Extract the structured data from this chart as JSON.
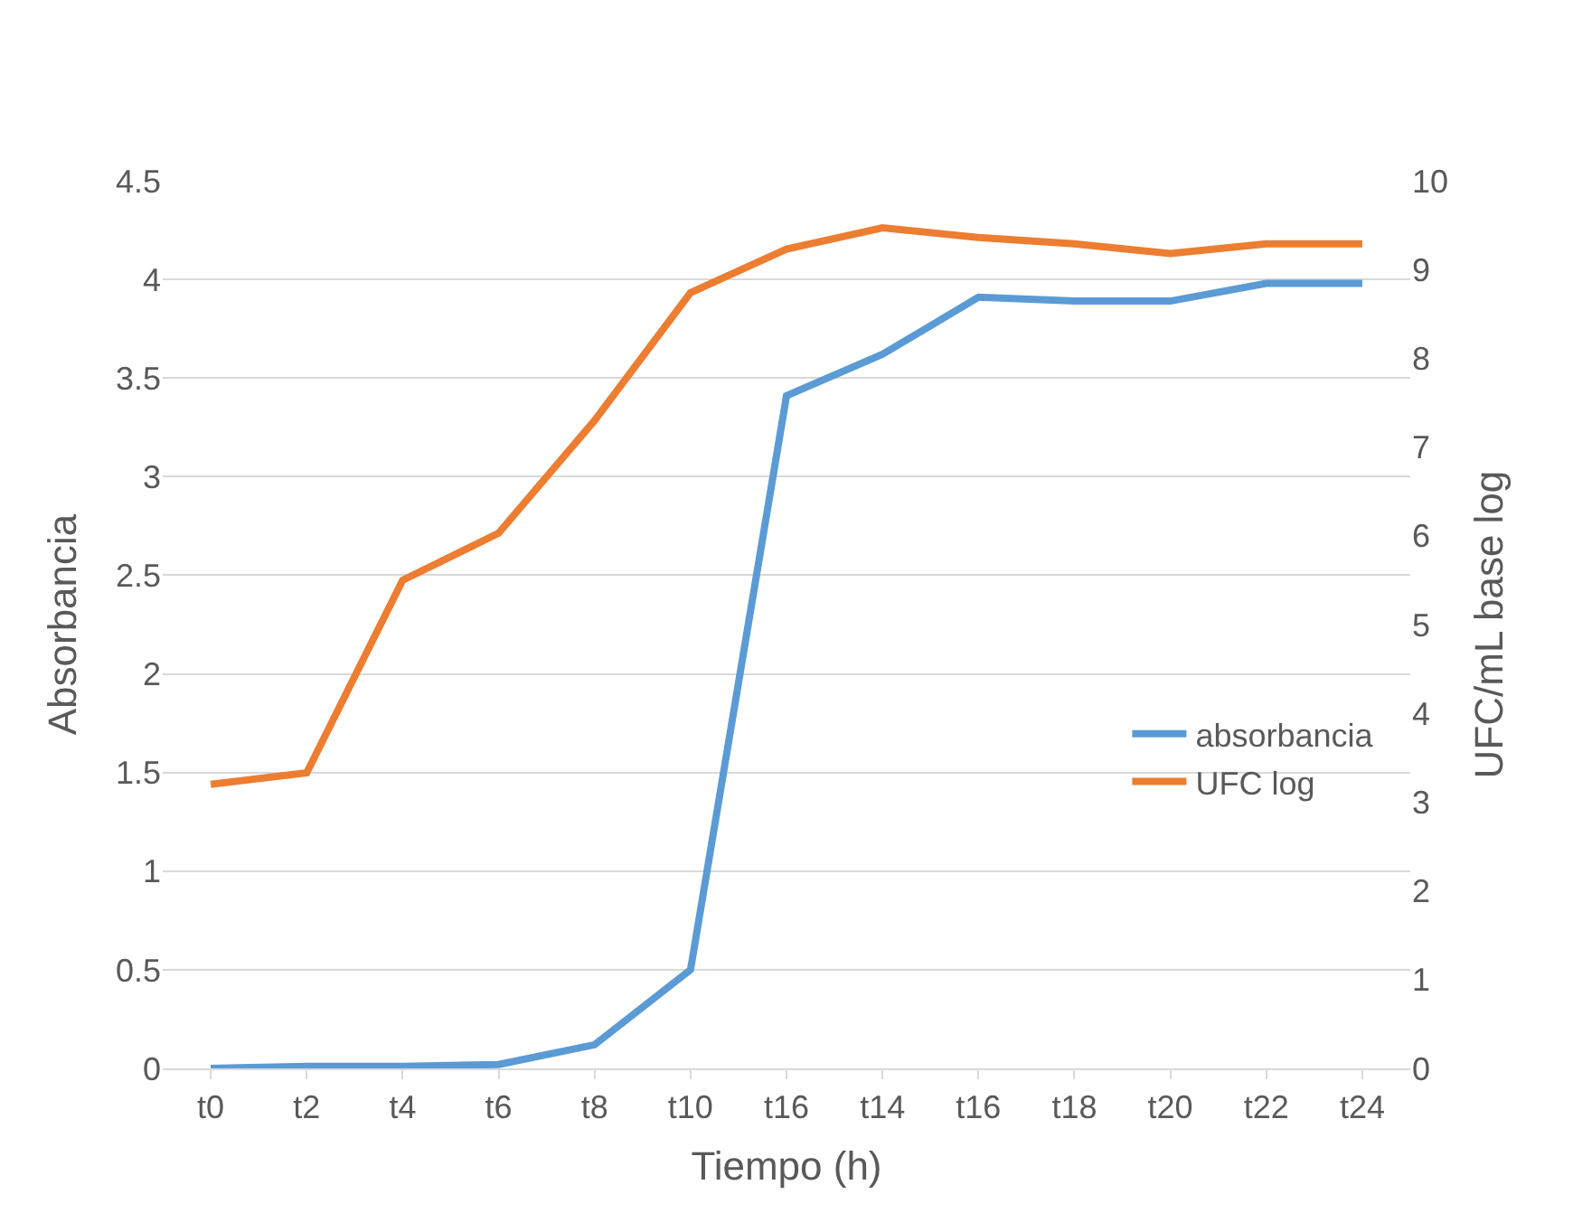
{
  "chart_data": {
    "type": "line",
    "xlabel": "Tiempo (h)",
    "ylabel": "Absorbancia",
    "y2label": "UFC/mL base log",
    "categories": [
      "t0",
      "t2",
      "t4",
      "t6",
      "t8",
      "t10",
      "t16",
      "t14",
      "t16",
      "t18",
      "t20",
      "t22",
      "t24"
    ],
    "series": [
      {
        "name": "absorbancia",
        "color": "#5b9bd5",
        "values": [
          0,
          0.01,
          0.01,
          0.02,
          0.12,
          0.5,
          3.41,
          3.62,
          3.91,
          3.89,
          3.89,
          3.98,
          3.98
        ]
      },
      {
        "name": "UFC log",
        "color": "#ed7d31",
        "axis": "y2",
        "values": [
          3.2,
          3.33,
          5.5,
          6.03,
          7.3,
          8.74,
          9.23,
          9.47,
          9.36,
          9.29,
          9.18,
          9.29,
          9.29
        ]
      }
    ],
    "ylim": [
      0,
      4.5
    ],
    "yticks": [
      0,
      0.5,
      1,
      1.5,
      2,
      2.5,
      3,
      3.5,
      4,
      4.5
    ],
    "y2lim": [
      0,
      10
    ],
    "y2ticks": [
      0,
      1,
      2,
      3,
      4,
      5,
      6,
      7,
      8,
      9,
      10
    ],
    "grid": "y",
    "legend": "center right",
    "marker": "none",
    "line_style": "solid"
  }
}
